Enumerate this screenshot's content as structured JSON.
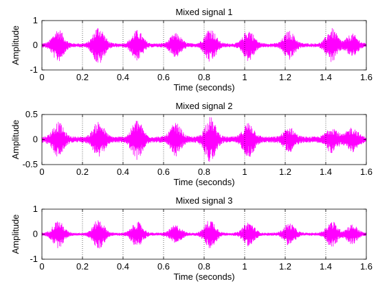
{
  "figure": {
    "background": "#ffffff",
    "signal_color": "#ff00ff",
    "grid_color": "#000000"
  },
  "chart_data": [
    {
      "type": "line",
      "title": "Mixed signal 1",
      "xlabel": "Time (seconds)",
      "ylabel": "Amplitude",
      "xlim": [
        0,
        1.6
      ],
      "ylim": [
        -1,
        1
      ],
      "xticks": [
        "0",
        "0.2",
        "0.4",
        "0.6",
        "0.8",
        "1",
        "1.2",
        "1.4",
        "1.6"
      ],
      "yticks": [
        "-1",
        "0",
        "1"
      ],
      "grid": "x-only, dotted",
      "series": [
        {
          "color": "#ff00ff",
          "noise_floor": 0.08,
          "bursts": [
            {
              "t": 0.08,
              "amp": 0.6
            },
            {
              "t": 0.28,
              "amp": 0.72
            },
            {
              "t": 0.47,
              "amp": 0.55
            },
            {
              "t": 0.66,
              "amp": 0.42
            },
            {
              "t": 0.83,
              "amp": 0.65
            },
            {
              "t": 1.02,
              "amp": 0.58
            },
            {
              "t": 1.22,
              "amp": 0.52
            },
            {
              "t": 1.43,
              "amp": 0.62
            },
            {
              "t": 1.53,
              "amp": 0.4
            }
          ]
        }
      ]
    },
    {
      "type": "line",
      "title": "Mixed signal 2",
      "xlabel": "Time (seconds)",
      "ylabel": "Amplitude",
      "xlim": [
        0,
        1.6
      ],
      "ylim": [
        -0.5,
        0.5
      ],
      "xticks": [
        "0",
        "0.2",
        "0.4",
        "0.6",
        "0.8",
        "1",
        "1.2",
        "1.4",
        "1.6"
      ],
      "yticks": [
        "-0.5",
        "0",
        "0.5"
      ],
      "grid": "x-only, dotted",
      "series": [
        {
          "color": "#ff00ff",
          "noise_floor": 0.06,
          "bursts": [
            {
              "t": 0.08,
              "amp": 0.3
            },
            {
              "t": 0.28,
              "amp": 0.32
            },
            {
              "t": 0.47,
              "amp": 0.35
            },
            {
              "t": 0.66,
              "amp": 0.28
            },
            {
              "t": 0.83,
              "amp": 0.4
            },
            {
              "t": 1.02,
              "amp": 0.3
            },
            {
              "t": 1.22,
              "amp": 0.2
            },
            {
              "t": 1.43,
              "amp": 0.22
            },
            {
              "t": 1.53,
              "amp": 0.2
            }
          ]
        }
      ]
    },
    {
      "type": "line",
      "title": "Mixed signal 3",
      "xlabel": "Time (seconds)",
      "ylabel": "Amplitude",
      "xlim": [
        0,
        1.6
      ],
      "ylim": [
        -1,
        1
      ],
      "xticks": [
        "0",
        "0.2",
        "0.4",
        "0.6",
        "0.8",
        "1",
        "1.2",
        "1.4",
        "1.6"
      ],
      "yticks": [
        "-1",
        "0",
        "1"
      ],
      "grid": "x-only, dotted",
      "series": [
        {
          "color": "#ff00ff",
          "noise_floor": 0.06,
          "bursts": [
            {
              "t": 0.08,
              "amp": 0.5
            },
            {
              "t": 0.28,
              "amp": 0.55
            },
            {
              "t": 0.47,
              "amp": 0.45
            },
            {
              "t": 0.66,
              "amp": 0.32
            },
            {
              "t": 0.83,
              "amp": 0.55
            },
            {
              "t": 1.02,
              "amp": 0.45
            },
            {
              "t": 1.22,
              "amp": 0.4
            },
            {
              "t": 1.43,
              "amp": 0.48
            },
            {
              "t": 1.53,
              "amp": 0.35
            }
          ]
        }
      ]
    }
  ]
}
